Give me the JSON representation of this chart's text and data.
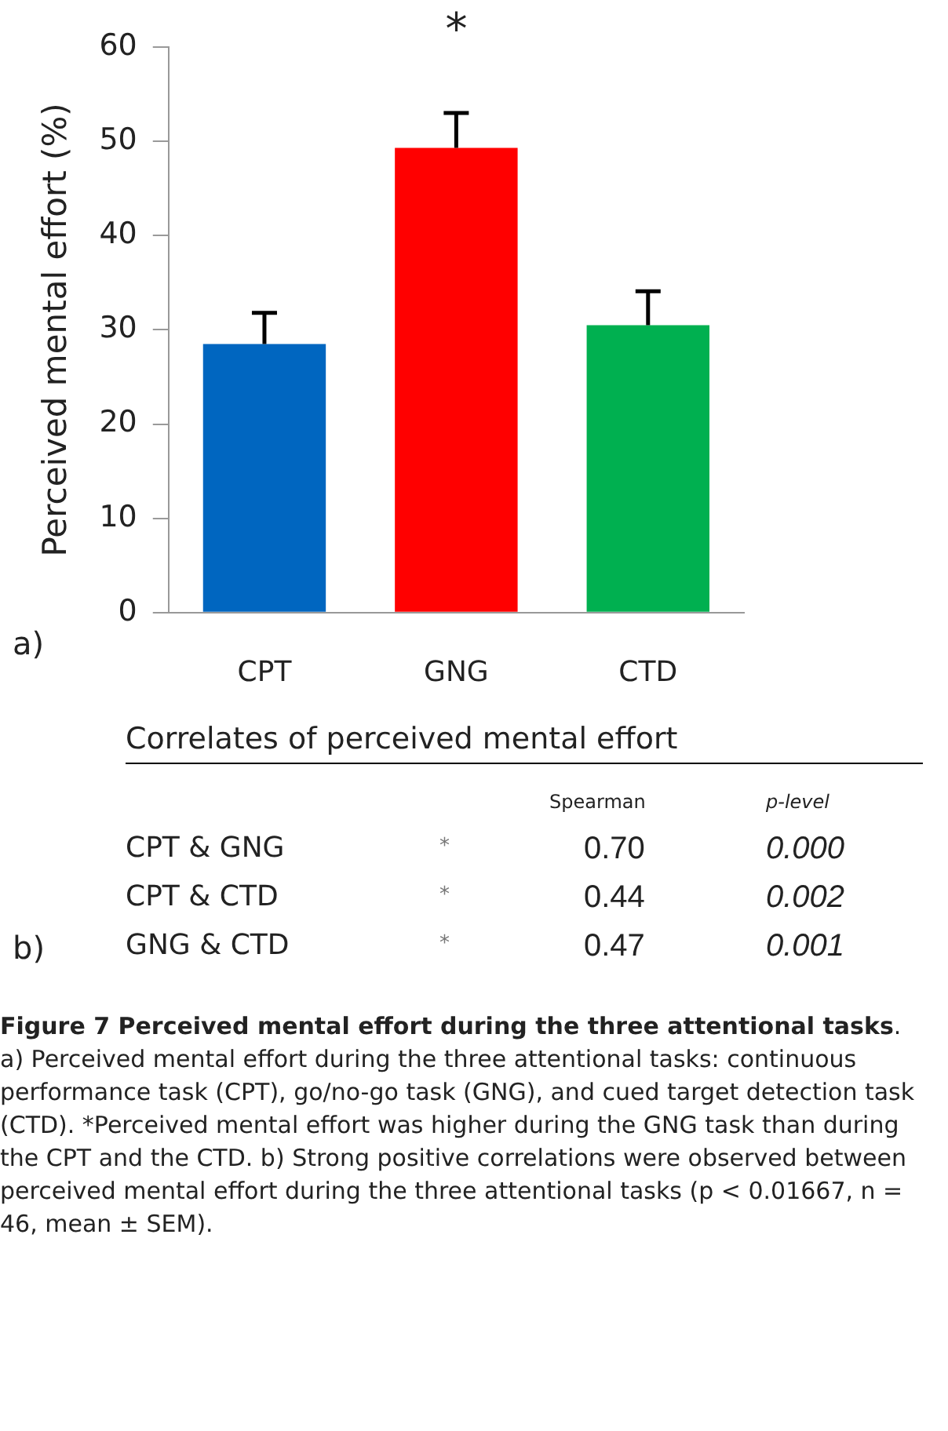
{
  "chart_data": {
    "type": "bar",
    "ylabel": "Perceived mental effort (%)",
    "categories": [
      "CPT",
      "GNG",
      "CTD"
    ],
    "values": [
      28.5,
      49.3,
      30.5
    ],
    "colors": [
      "#0066c0",
      "#ff0000",
      "#00b050"
    ],
    "errors": [
      [
        28.5,
        31.8
      ],
      [
        49.3,
        53.0
      ],
      [
        30.5,
        34.1
      ]
    ],
    "ylim": [
      0,
      60
    ],
    "yticks": [
      0,
      10,
      20,
      30,
      40,
      50,
      60
    ],
    "grid": false,
    "legend": false,
    "annotations": [
      "a)",
      "*",
      "b)",
      "Correlates of perceived mental effort",
      "Spearman",
      "p-level",
      "CPT & GNG",
      "*",
      "0.70",
      "0.000",
      "CPT & CTD",
      "*",
      "0.44",
      "0.002",
      "GNG & CTD",
      "*",
      "0.47",
      "0.001",
      "Figure 7 Perceived mental effort during the three attentional tasks",
      ". a) Perceived mental effort during the three attentional tasks: continuous performance task (CPT), go/no-go task (GNG), and cued target detection task (CTD). *Perceived mental effort was higher during the GNG task than during the CPT and the CTD. b) Strong positive correlations were observed between perceived mental effort during the three attentional tasks (p < 0.01667, n = 46, mean ± SEM)."
    ]
  }
}
